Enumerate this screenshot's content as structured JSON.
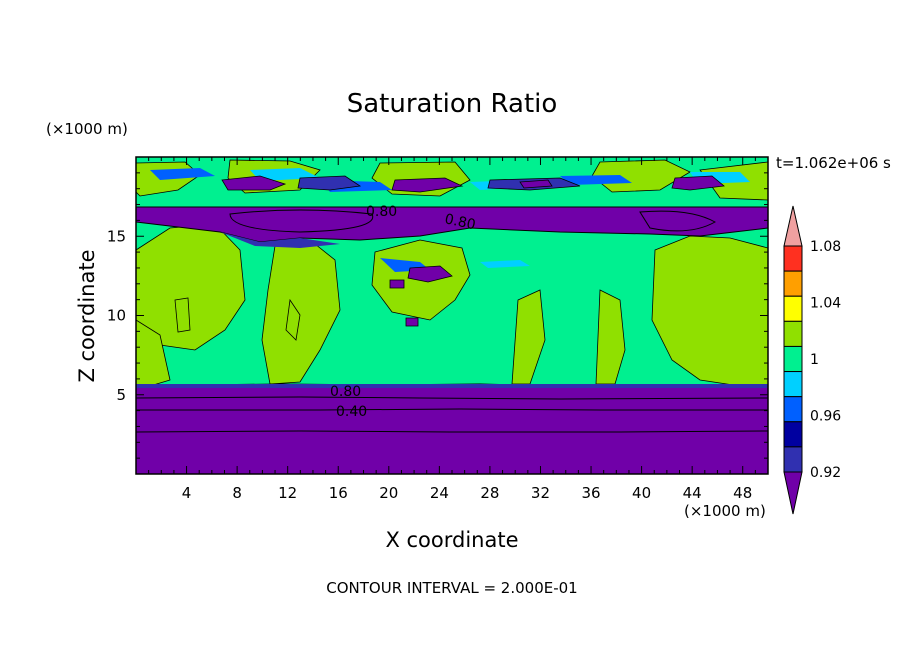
{
  "chart_data": {
    "type": "heatmap",
    "title": "Saturation Ratio",
    "xlabel": "X coordinate",
    "ylabel": "Z coordinate",
    "x_unit": "(×1000 m)",
    "y_unit": "(×1000 m)",
    "time_label": "t=1.062e+06 s",
    "footer": "CONTOUR INTERVAL = 2.000E-01",
    "xlim": [
      0,
      50
    ],
    "ylim": [
      0,
      20
    ],
    "x_ticks": [
      4,
      8,
      12,
      16,
      20,
      24,
      28,
      32,
      36,
      40,
      44,
      48
    ],
    "y_ticks": [
      5,
      10,
      15
    ],
    "colorbar": {
      "labels": [
        "0.92",
        "0.96",
        "1",
        "1.04",
        "1.08"
      ],
      "levels": [
        0.9,
        0.92,
        0.94,
        0.96,
        0.98,
        1.0,
        1.02,
        1.04,
        1.06,
        1.08,
        1.1
      ],
      "colors": [
        "#7000a8",
        "#3030b0",
        "#0000a0",
        "#0060ff",
        "#00d0ff",
        "#00f090",
        "#90e000",
        "#ffff00",
        "#ff9f00",
        "#ff3020",
        "#f0a0a0"
      ],
      "extend": "both"
    },
    "contour_labels": [
      {
        "text": "0.80",
        "x": 19.5,
        "z": 16.6
      },
      {
        "text": "0.80",
        "x": 25.0,
        "z": 16.2
      },
      {
        "text": "0.80",
        "x": 16.5,
        "z": 5.1
      },
      {
        "text": "0.40",
        "x": 17.0,
        "z": 4.0
      }
    ],
    "regions": [
      {
        "level": "<0.90",
        "color": "#7000a8",
        "description": "dry layer z 0-5.5 and band z 16-17"
      },
      {
        "level": "0.98-1.00",
        "color": "#00f090",
        "description": "background saturation"
      },
      {
        "level": "1.00-1.02",
        "color": "#90e000",
        "description": "supersaturated patches"
      }
    ]
  },
  "colors": {
    "purple": "#7000a8",
    "green": "#00f090",
    "lime": "#90e000",
    "navy": "#3030b0",
    "cyan": "#00d0ff",
    "blue": "#0060ff"
  }
}
